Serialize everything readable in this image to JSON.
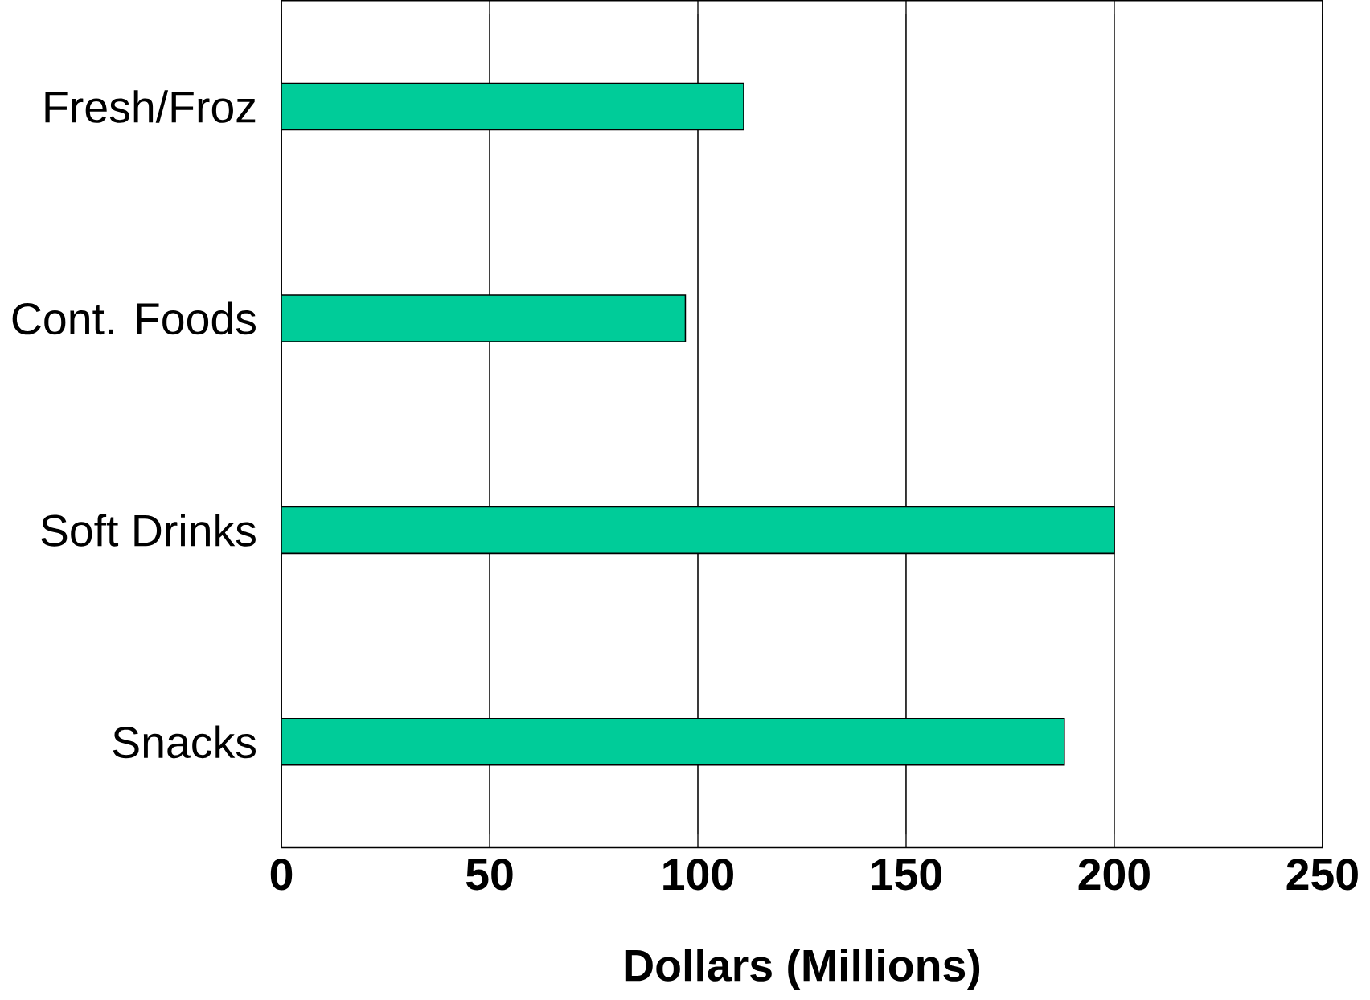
{
  "chart_data": {
    "type": "bar",
    "orientation": "horizontal",
    "categories": [
      "Fresh/Froz",
      "Cont. Foods",
      "Soft Drinks",
      "Snacks"
    ],
    "values": [
      111,
      97,
      200,
      188
    ],
    "color": "#00cc99",
    "xlabel": "Dollars (Millions)",
    "xlim": [
      0,
      250
    ],
    "xticks": [
      0,
      50,
      100,
      150,
      200,
      250
    ],
    "grid": "x"
  }
}
